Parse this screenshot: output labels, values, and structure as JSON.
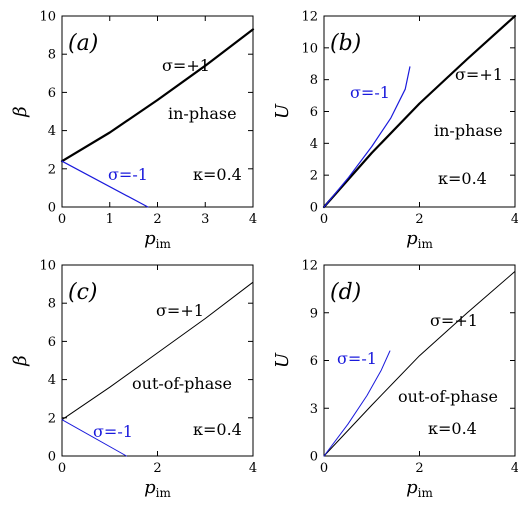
{
  "colors": {
    "black": "#000000",
    "blue": "#1a1adc"
  },
  "chart_data": [
    {
      "type": "line",
      "panel_label": "(a)",
      "xlabel": "p",
      "xlabel_sub": "im",
      "ylabel": "β",
      "xlim": [
        0,
        4
      ],
      "ylim": [
        0,
        10
      ],
      "xticks": [
        "0",
        "1",
        "2",
        "3",
        "4"
      ],
      "yticks": [
        "0",
        "2",
        "4",
        "6",
        "8",
        "10"
      ],
      "annotations": {
        "sigma_pos": "σ=+1",
        "sigma_neg": "σ=-1",
        "phase": "in-phase",
        "kappa": "κ=0.4"
      },
      "series": [
        {
          "color": "#000000",
          "width": 2.2,
          "x": [
            0,
            1,
            2,
            3,
            4
          ],
          "y": [
            2.4,
            3.9,
            5.6,
            7.4,
            9.3
          ]
        },
        {
          "color": "#1a1adc",
          "width": 1.2,
          "x": [
            0,
            1.8
          ],
          "y": [
            2.4,
            0
          ]
        }
      ]
    },
    {
      "type": "line",
      "panel_label": "(b)",
      "xlabel": "p",
      "xlabel_sub": "im",
      "ylabel": "U",
      "xlim": [
        0,
        4
      ],
      "ylim": [
        0,
        12
      ],
      "xticks": [
        "0",
        "2",
        "4"
      ],
      "yticks": [
        "0",
        "2",
        "4",
        "6",
        "8",
        "10",
        "12"
      ],
      "annotations": {
        "sigma_pos": "σ=+1",
        "sigma_neg": "σ=-1",
        "phase": "in-phase",
        "kappa": "κ=0.4"
      },
      "series": [
        {
          "color": "#000000",
          "width": 2.2,
          "x": [
            0,
            1,
            2,
            3,
            4
          ],
          "y": [
            0,
            3.4,
            6.5,
            9.3,
            12
          ]
        },
        {
          "color": "#1a1adc",
          "width": 1.2,
          "x": [
            0,
            0.5,
            1.0,
            1.4,
            1.7,
            1.8
          ],
          "y": [
            0,
            1.8,
            3.8,
            5.6,
            7.4,
            8.8
          ]
        }
      ]
    },
    {
      "type": "line",
      "panel_label": "(c)",
      "xlabel": "p",
      "xlabel_sub": "im",
      "ylabel": "β",
      "xlim": [
        0,
        4
      ],
      "ylim": [
        0,
        10
      ],
      "xticks": [
        "0",
        "2",
        "4"
      ],
      "yticks": [
        "0",
        "2",
        "4",
        "6",
        "8",
        "10"
      ],
      "annotations": {
        "sigma_pos": "σ=+1",
        "sigma_neg": "σ=-1",
        "phase": "out-of-phase",
        "kappa": "κ=0.4"
      },
      "series": [
        {
          "color": "#000000",
          "width": 1.0,
          "x": [
            0,
            1,
            2,
            3,
            4
          ],
          "y": [
            1.9,
            3.6,
            5.4,
            7.2,
            9.1
          ]
        },
        {
          "color": "#1a1adc",
          "width": 1.0,
          "x": [
            0,
            1.35
          ],
          "y": [
            1.9,
            0
          ]
        }
      ]
    },
    {
      "type": "line",
      "panel_label": "(d)",
      "xlabel": "p",
      "xlabel_sub": "im",
      "ylabel": "U",
      "xlim": [
        0,
        4
      ],
      "ylim": [
        0,
        12
      ],
      "xticks": [
        "0",
        "2",
        "4"
      ],
      "yticks": [
        "0",
        "3",
        "6",
        "9",
        "12"
      ],
      "annotations": {
        "sigma_pos": "σ=+1",
        "sigma_neg": "σ=-1",
        "phase": "out-of-phase",
        "kappa": "κ=0.4"
      },
      "series": [
        {
          "color": "#000000",
          "width": 1.0,
          "x": [
            0,
            1,
            2,
            3,
            4
          ],
          "y": [
            0,
            3.2,
            6.3,
            9.0,
            11.6
          ]
        },
        {
          "color": "#1a1adc",
          "width": 1.0,
          "x": [
            0,
            0.5,
            0.9,
            1.2,
            1.38
          ],
          "y": [
            0,
            2.0,
            3.8,
            5.4,
            6.6
          ]
        }
      ]
    }
  ]
}
